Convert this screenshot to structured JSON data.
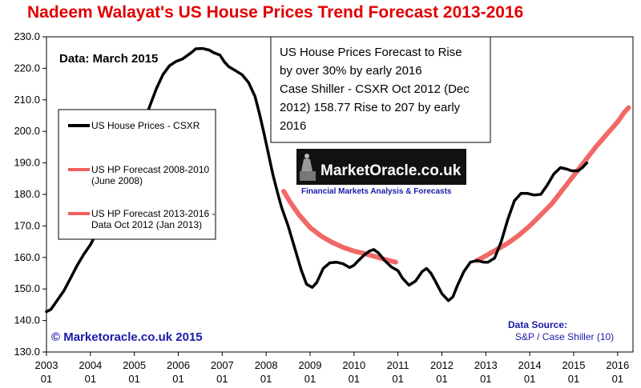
{
  "chart_data": {
    "type": "line",
    "title": "Nadeem Walayat's US House Prices Trend  Forecast 2013-2016",
    "date_label": "Data:  March 2015",
    "xlabel": "",
    "ylabel": "",
    "ylim": [
      130,
      230
    ],
    "yticks": [
      "230.0",
      "220.0",
      "210.0",
      "200.0",
      "190.0",
      "180.0",
      "170.0",
      "160.0",
      "150.0",
      "140.0",
      "130.0"
    ],
    "xticks": [
      {
        "year": "2003",
        "month": "01",
        "x": 2003
      },
      {
        "year": "2004",
        "month": "01",
        "x": 2004
      },
      {
        "year": "2005",
        "month": "01",
        "x": 2005
      },
      {
        "year": "2006",
        "month": "01",
        "x": 2006
      },
      {
        "year": "2007",
        "month": "01",
        "x": 2007
      },
      {
        "year": "2008",
        "month": "01",
        "x": 2008
      },
      {
        "year": "2009",
        "month": "01",
        "x": 2009
      },
      {
        "year": "2010",
        "month": "01",
        "x": 2010
      },
      {
        "year": "2011",
        "month": "01",
        "x": 2011
      },
      {
        "year": "2012",
        "month": "01",
        "x": 2012
      },
      {
        "year": "2013",
        "month": "01",
        "x": 2013
      },
      {
        "year": "2014",
        "month": "01",
        "x": 2014
      },
      {
        "year": "2015",
        "month": "01",
        "x": 2015
      },
      {
        "year": "2016",
        "month": "01",
        "x": 2016
      }
    ],
    "xlim": [
      2003,
      2016.35
    ],
    "grid": false,
    "legend": {
      "placement": "left",
      "entries": [
        {
          "label_lines": [
            "US House Prices - CSXR"
          ],
          "color": "#000000"
        },
        {
          "label_lines": [
            "US HP Forecast 2008-2010",
            "(June 2008)"
          ],
          "color": "#f0605e"
        },
        {
          "label_lines": [
            "US HP Forecast 2013-2016 -",
            "Data Oct 2012 (Jan 2013)"
          ],
          "color": "#f0605e"
        }
      ]
    },
    "annotation_lines": [
      "US House Prices Forecast to Rise",
      "by over 30% by early 2016",
      "Case Shiller - CSXR Oct 2012 (Dec",
      "2012) 158.77 Rise to 207 by early",
      "2016"
    ],
    "logo": {
      "name": "MarketOracle.co.uk",
      "tagline": "Financial Markets Analysis & Forecasts"
    },
    "copyright": "© Marketoracle.co.uk 2015",
    "source_title": "Data Source:",
    "source_text": "S&P / Case Shiller (10)",
    "series": [
      {
        "name": "US House Prices - CSXR",
        "color": "#000000",
        "points": [
          [
            2003.0,
            142.8
          ],
          [
            2003.1,
            143.5
          ],
          [
            2003.25,
            146.5
          ],
          [
            2003.4,
            149.5
          ],
          [
            2003.55,
            153.5
          ],
          [
            2003.7,
            157.5
          ],
          [
            2003.85,
            161.0
          ],
          [
            2004.0,
            164.0
          ],
          [
            2004.15,
            168.0
          ],
          [
            2004.3,
            172.5
          ],
          [
            2004.45,
            177.0
          ],
          [
            2004.6,
            182.0
          ],
          [
            2004.75,
            187.0
          ],
          [
            2004.9,
            191.5
          ],
          [
            2005.05,
            196.5
          ],
          [
            2005.2,
            202.0
          ],
          [
            2005.35,
            208.0
          ],
          [
            2005.5,
            213.5
          ],
          [
            2005.65,
            218.0
          ],
          [
            2005.8,
            220.8
          ],
          [
            2005.95,
            222.2
          ],
          [
            2006.1,
            223.0
          ],
          [
            2006.2,
            224.0
          ],
          [
            2006.3,
            225.0
          ],
          [
            2006.4,
            226.2
          ],
          [
            2006.55,
            226.3
          ],
          [
            2006.7,
            225.8
          ],
          [
            2006.8,
            225.0
          ],
          [
            2006.95,
            224.2
          ],
          [
            2007.05,
            222.0
          ],
          [
            2007.15,
            220.5
          ],
          [
            2007.3,
            219.3
          ],
          [
            2007.45,
            218.0
          ],
          [
            2007.6,
            215.5
          ],
          [
            2007.75,
            211.0
          ],
          [
            2007.85,
            205.5
          ],
          [
            2007.95,
            199.5
          ],
          [
            2008.05,
            193.0
          ],
          [
            2008.15,
            186.5
          ],
          [
            2008.25,
            181.0
          ],
          [
            2008.35,
            176.0
          ],
          [
            2008.5,
            170.0
          ],
          [
            2008.65,
            163.0
          ],
          [
            2008.8,
            156.0
          ],
          [
            2008.92,
            151.5
          ],
          [
            2009.05,
            150.5
          ],
          [
            2009.15,
            152.0
          ],
          [
            2009.3,
            156.5
          ],
          [
            2009.45,
            158.3
          ],
          [
            2009.6,
            158.5
          ],
          [
            2009.75,
            158.0
          ],
          [
            2009.9,
            156.8
          ],
          [
            2010.0,
            157.5
          ],
          [
            2010.1,
            159.0
          ],
          [
            2010.25,
            161.0
          ],
          [
            2010.35,
            162.0
          ],
          [
            2010.45,
            162.5
          ],
          [
            2010.55,
            161.5
          ],
          [
            2010.7,
            159.0
          ],
          [
            2010.85,
            157.0
          ],
          [
            2011.0,
            155.8
          ],
          [
            2011.1,
            153.5
          ],
          [
            2011.25,
            151.2
          ],
          [
            2011.4,
            152.5
          ],
          [
            2011.55,
            155.5
          ],
          [
            2011.65,
            156.5
          ],
          [
            2011.75,
            155.0
          ],
          [
            2011.85,
            152.5
          ],
          [
            2012.0,
            148.5
          ],
          [
            2012.15,
            146.3
          ],
          [
            2012.25,
            147.5
          ],
          [
            2012.35,
            151.0
          ],
          [
            2012.5,
            155.5
          ],
          [
            2012.65,
            158.5
          ],
          [
            2012.8,
            159.0
          ],
          [
            2012.95,
            158.5
          ],
          [
            2013.05,
            158.5
          ],
          [
            2013.2,
            159.8
          ],
          [
            2013.35,
            165.0
          ],
          [
            2013.5,
            172.0
          ],
          [
            2013.65,
            178.0
          ],
          [
            2013.8,
            180.3
          ],
          [
            2013.95,
            180.3
          ],
          [
            2014.1,
            179.8
          ],
          [
            2014.25,
            180.0
          ],
          [
            2014.4,
            183.0
          ],
          [
            2014.55,
            186.5
          ],
          [
            2014.7,
            188.5
          ],
          [
            2014.85,
            188.0
          ],
          [
            2014.95,
            187.5
          ],
          [
            2015.1,
            187.5
          ],
          [
            2015.2,
            188.5
          ],
          [
            2015.3,
            190.0
          ]
        ]
      },
      {
        "name": "US HP Forecast 2008-2010",
        "color": "#f0605e",
        "points": [
          [
            2008.4,
            181.0
          ],
          [
            2008.55,
            177.5
          ],
          [
            2008.75,
            173.5
          ],
          [
            2009.0,
            169.5
          ],
          [
            2009.25,
            166.8
          ],
          [
            2009.5,
            164.8
          ],
          [
            2009.75,
            163.2
          ],
          [
            2010.0,
            162.0
          ],
          [
            2010.25,
            161.2
          ],
          [
            2010.5,
            160.2
          ],
          [
            2010.75,
            159.2
          ],
          [
            2010.95,
            158.5
          ]
        ]
      },
      {
        "name": "US HP Forecast 2013-2016",
        "color": "#f0605e",
        "points": [
          [
            2012.8,
            159.0
          ],
          [
            2013.0,
            160.5
          ],
          [
            2013.25,
            162.5
          ],
          [
            2013.5,
            164.5
          ],
          [
            2013.75,
            167.0
          ],
          [
            2014.0,
            170.0
          ],
          [
            2014.25,
            173.5
          ],
          [
            2014.5,
            177.0
          ],
          [
            2014.75,
            181.5
          ],
          [
            2015.0,
            186.0
          ],
          [
            2015.25,
            190.5
          ],
          [
            2015.5,
            195.0
          ],
          [
            2015.75,
            199.0
          ],
          [
            2016.0,
            203.0
          ],
          [
            2016.15,
            206.0
          ],
          [
            2016.25,
            207.5
          ]
        ]
      }
    ]
  }
}
